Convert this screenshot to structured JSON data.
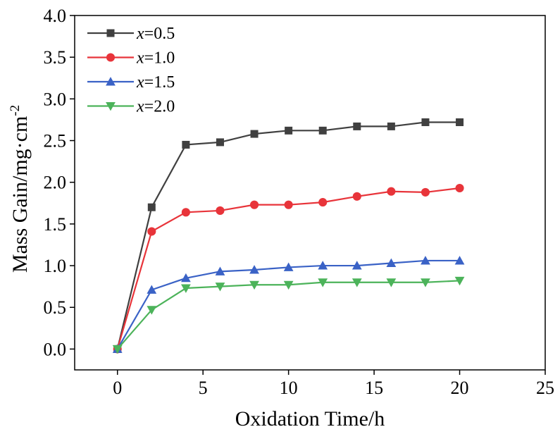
{
  "chart_data": {
    "type": "line",
    "xlabel": "Oxidation Time/h",
    "ylabel_main": "Mass Gain/mg·cm",
    "ylabel_sup": "-2",
    "xlim": [
      -2.5,
      25
    ],
    "ylim": [
      -0.25,
      4.0
    ],
    "xticks": [
      0,
      5,
      10,
      15,
      20,
      25
    ],
    "xtick_labels": [
      "0",
      "5",
      "10",
      "15",
      "20",
      "25"
    ],
    "yticks": [
      0.0,
      0.5,
      1.0,
      1.5,
      2.0,
      2.5,
      3.0,
      3.5,
      4.0
    ],
    "ytick_labels": [
      "0.0",
      "0.5",
      "1.0",
      "1.5",
      "2.0",
      "2.5",
      "3.0",
      "3.5",
      "4.0"
    ],
    "grid": false,
    "legend_position": "top-left",
    "x": [
      0,
      2,
      4,
      6,
      8,
      10,
      12,
      14,
      16,
      18,
      20
    ],
    "series": [
      {
        "name_var": "x",
        "name_val": "=0.5",
        "color": "#404040",
        "marker": "square",
        "values": [
          0.0,
          1.7,
          2.45,
          2.48,
          2.58,
          2.62,
          2.62,
          2.67,
          2.67,
          2.72,
          2.72
        ]
      },
      {
        "name_var": "x",
        "name_val": "=1.0",
        "color": "#e8343a",
        "marker": "circle",
        "values": [
          0.0,
          1.41,
          1.64,
          1.66,
          1.73,
          1.73,
          1.76,
          1.83,
          1.89,
          1.88,
          1.93
        ]
      },
      {
        "name_var": "x",
        "name_val": "=1.5",
        "color": "#3a62c6",
        "marker": "triangle-up",
        "values": [
          0.0,
          0.71,
          0.85,
          0.93,
          0.95,
          0.98,
          1.0,
          1.0,
          1.03,
          1.06,
          1.06
        ]
      },
      {
        "name_var": "x",
        "name_val": "=2.0",
        "color": "#4cb35a",
        "marker": "triangle-down",
        "values": [
          0.0,
          0.47,
          0.73,
          0.75,
          0.77,
          0.77,
          0.8,
          0.8,
          0.8,
          0.8,
          0.82
        ]
      }
    ]
  }
}
